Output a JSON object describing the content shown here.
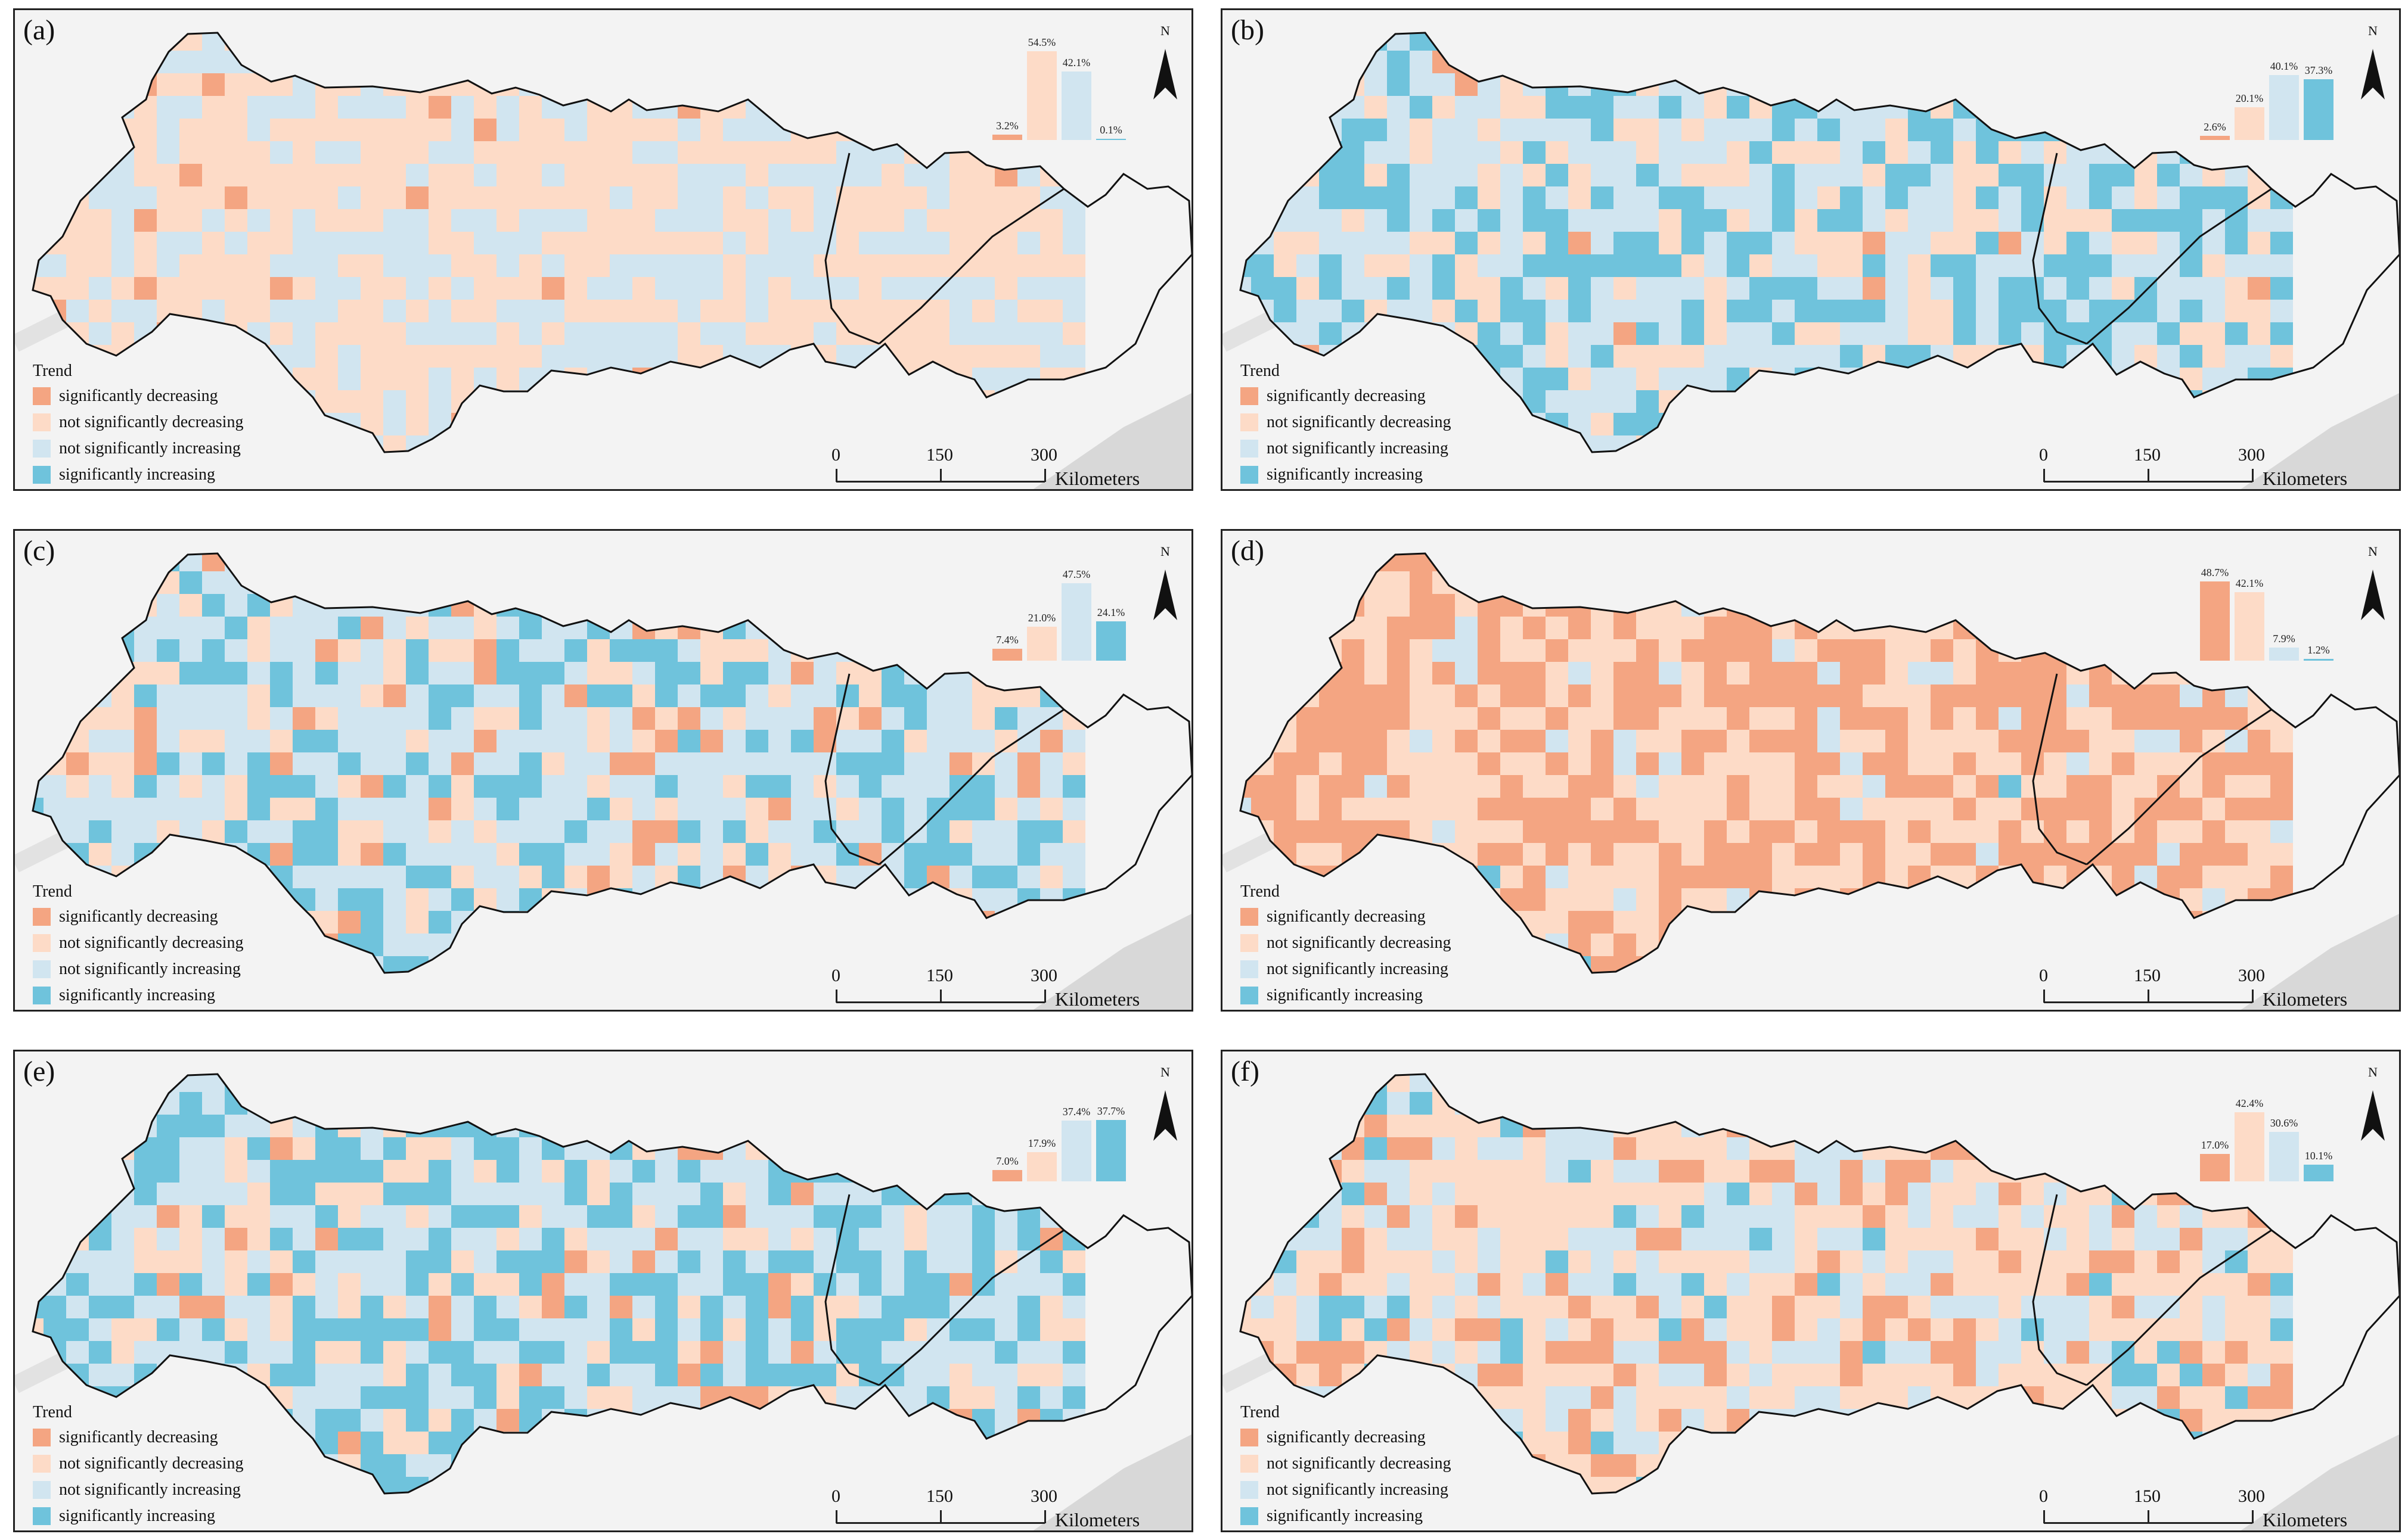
{
  "colors": {
    "sig_dec": "#f4a582",
    "nonsig_dec": "#fddbc7",
    "nonsig_inc": "#d1e5f0",
    "sig_inc": "#6fc3dc",
    "background": "#f3f3f3",
    "outline": "#111111"
  },
  "legend": {
    "title": "Trend",
    "items": [
      {
        "label": "significantly decreasing",
        "color": "#f4a582"
      },
      {
        "label": "not significantly decreasing",
        "color": "#fddbc7"
      },
      {
        "label": "not significantly increasing",
        "color": "#d1e5f0"
      },
      {
        "label": "significantly increasing",
        "color": "#6fc3dc"
      }
    ]
  },
  "scale": {
    "ticks": [
      "0",
      "150",
      "300"
    ],
    "unit": "Kilometers"
  },
  "north_label": "N",
  "panels": [
    {
      "id": "a",
      "label": "(a)",
      "values": [
        3.2,
        54.5,
        42.1,
        0.1
      ],
      "labels": [
        "3.2%",
        "54.5%",
        "42.1%",
        "0.1%"
      ]
    },
    {
      "id": "b",
      "label": "(b)",
      "values": [
        2.6,
        20.1,
        40.1,
        37.3
      ],
      "labels": [
        "2.6%",
        "20.1%",
        "40.1%",
        "37.3%"
      ]
    },
    {
      "id": "c",
      "label": "(c)",
      "values": [
        7.4,
        21.0,
        47.5,
        24.1
      ],
      "labels": [
        "7.4%",
        "21.0%",
        "47.5%",
        "24.1%"
      ]
    },
    {
      "id": "d",
      "label": "(d)",
      "values": [
        48.7,
        42.1,
        7.9,
        1.2
      ],
      "labels": [
        "48.7%",
        "42.1%",
        "7.9%",
        "1.2%"
      ]
    },
    {
      "id": "e",
      "label": "(e)",
      "values": [
        7.0,
        17.9,
        37.4,
        37.7
      ],
      "labels": [
        "7.0%",
        "17.9%",
        "37.4%",
        "37.7%"
      ]
    },
    {
      "id": "f",
      "label": "(f)",
      "values": [
        17.0,
        42.4,
        30.6,
        10.1
      ],
      "labels": [
        "17.0%",
        "42.4%",
        "30.6%",
        "10.1%"
      ]
    }
  ]
}
